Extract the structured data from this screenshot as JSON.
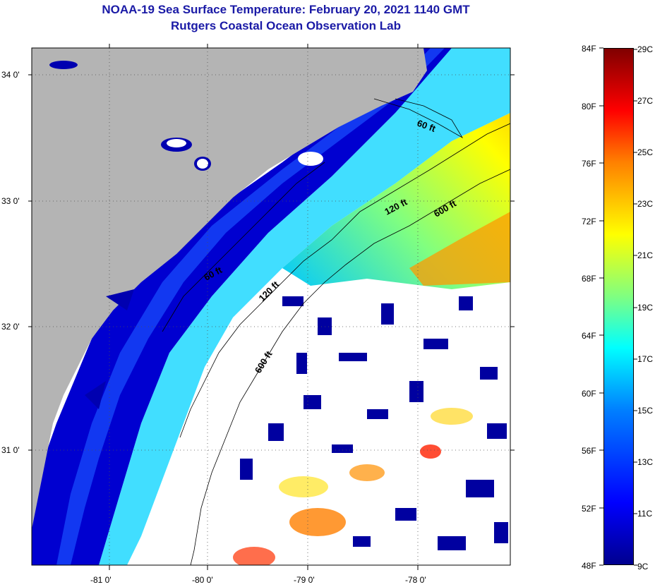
{
  "title": {
    "line1": "NOAA-19 Sea Surface Temperature:  February 20, 2021 1140 GMT",
    "line2": "Rutgers Coastal Ocean Observation Lab"
  },
  "map": {
    "lon_ticks": [
      "-81 0'",
      "-80 0'",
      "-79 0'",
      "-78 0'"
    ],
    "lat_ticks": [
      "34 0'",
      "33 0'",
      "32 0'",
      "31 0'"
    ],
    "contour_labels": [
      "60 ft",
      "120 ft",
      "600 ft",
      "60 ft",
      "120 ft",
      "600 ft"
    ],
    "colors": {
      "land": "#b4b4b4",
      "cloud": "#ffffff",
      "coastal_water": "#0000c8"
    }
  },
  "colorbar": {
    "fahrenheit": [
      "84F",
      "80F",
      "76F",
      "72F",
      "68F",
      "64F",
      "60F",
      "56F",
      "52F",
      "48F"
    ],
    "celsius": [
      "29C",
      "27C",
      "25C",
      "23C",
      "21C",
      "19C",
      "17C",
      "15C",
      "13C",
      "11C",
      "9C"
    ]
  }
}
